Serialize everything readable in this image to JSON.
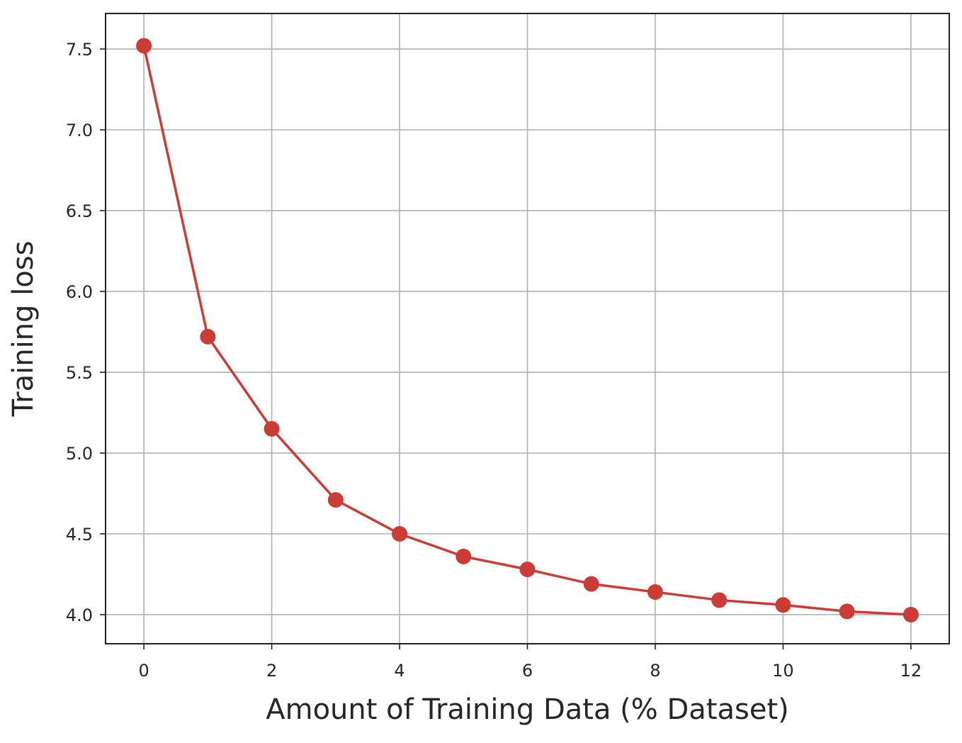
{
  "chart_data": {
    "type": "line",
    "title": "",
    "xlabel": "Amount of Training Data (% Dataset)",
    "ylabel": "Training loss",
    "x": [
      0,
      1,
      2,
      3,
      4,
      5,
      6,
      7,
      8,
      9,
      10,
      11,
      12
    ],
    "series": [
      {
        "values": [
          7.52,
          5.72,
          5.15,
          4.71,
          4.5,
          4.36,
          4.28,
          4.19,
          4.14,
          4.09,
          4.06,
          4.02,
          4.0
        ],
        "color": "#cc3c37",
        "marker": "circle"
      }
    ],
    "xlim": [
      -0.6,
      12.6
    ],
    "ylim": [
      3.82,
      7.72
    ],
    "x_ticks": [
      "0",
      "2",
      "4",
      "6",
      "8",
      "10",
      "12"
    ],
    "y_ticks": [
      "4.0",
      "4.5",
      "5.0",
      "5.5",
      "6.0",
      "6.5",
      "7.0",
      "7.5"
    ],
    "grid": true,
    "legend": "none"
  }
}
